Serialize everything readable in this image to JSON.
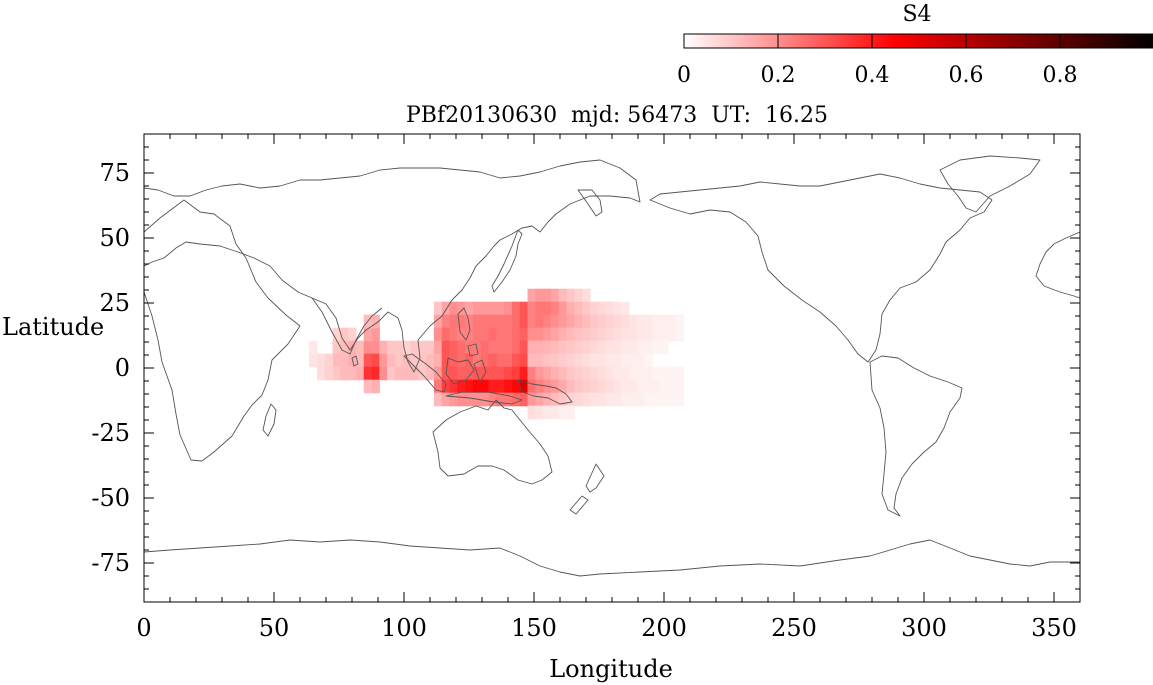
{
  "chart_data": {
    "type": "heatmap",
    "title": "PBf20130630  mjd: 56473  UT:  16.25",
    "xlabel": "Longitude",
    "ylabel": "Latitude",
    "xlim": [
      0,
      360
    ],
    "ylim": [
      -90,
      90
    ],
    "xticks": [
      0,
      50,
      100,
      150,
      200,
      250,
      300,
      350
    ],
    "yticks": [
      75,
      50,
      25,
      0,
      -25,
      -50,
      -75
    ],
    "grid": false,
    "colorbar": {
      "label": "S4",
      "range": [
        0,
        1
      ],
      "ticks": [
        0,
        0.2,
        0.4,
        0.6,
        0.8
      ],
      "tick_labels": [
        "0",
        "0.2",
        "0.4",
        "0.6",
        "0.8"
      ],
      "colormap": [
        "#ffffff",
        "#ff0000",
        "#000000"
      ],
      "position": "top-right"
    },
    "cell_size_deg": [
      3,
      5
    ],
    "cells": [
      [
        74,
        13,
        0.08
      ],
      [
        77,
        13,
        0.1
      ],
      [
        80,
        13,
        0.08
      ],
      [
        74,
        8,
        0.1
      ],
      [
        77,
        8,
        0.12
      ],
      [
        80,
        8,
        0.14
      ],
      [
        83,
        8,
        0.12
      ],
      [
        86,
        8,
        0.2
      ],
      [
        89,
        8,
        0.2
      ],
      [
        92,
        8,
        0.14
      ],
      [
        74,
        3,
        0.12
      ],
      [
        77,
        3,
        0.12
      ],
      [
        80,
        3,
        0.14
      ],
      [
        83,
        3,
        0.12
      ],
      [
        86,
        3,
        0.3
      ],
      [
        89,
        3,
        0.32
      ],
      [
        92,
        3,
        0.18
      ],
      [
        74,
        -2,
        0.1
      ],
      [
        77,
        -2,
        0.12
      ],
      [
        80,
        -2,
        0.12
      ],
      [
        83,
        -2,
        0.14
      ],
      [
        86,
        -2,
        0.36
      ],
      [
        89,
        -2,
        0.38
      ],
      [
        92,
        -2,
        0.2
      ],
      [
        86,
        13,
        0.16
      ],
      [
        89,
        13,
        0.18
      ],
      [
        86,
        18,
        0.12
      ],
      [
        89,
        18,
        0.14
      ],
      [
        86,
        -7,
        0.12
      ],
      [
        89,
        -7,
        0.14
      ],
      [
        65,
        8,
        0.04
      ],
      [
        65,
        3,
        0.05
      ],
      [
        68,
        3,
        0.06
      ],
      [
        71,
        3,
        0.08
      ],
      [
        68,
        -2,
        0.06
      ],
      [
        71,
        -2,
        0.08
      ],
      [
        95,
        3,
        0.12
      ],
      [
        98,
        3,
        0.1
      ],
      [
        101,
        3,
        0.12
      ],
      [
        104,
        3,
        0.1
      ],
      [
        107,
        3,
        0.1
      ],
      [
        110,
        3,
        0.12
      ],
      [
        95,
        8,
        0.1
      ],
      [
        98,
        8,
        0.1
      ],
      [
        101,
        8,
        0.08
      ],
      [
        104,
        8,
        0.1
      ],
      [
        107,
        8,
        0.1
      ],
      [
        110,
        8,
        0.1
      ],
      [
        95,
        -2,
        0.1
      ],
      [
        98,
        -2,
        0.12
      ],
      [
        101,
        -2,
        0.12
      ],
      [
        104,
        -2,
        0.12
      ],
      [
        107,
        -2,
        0.1
      ],
      [
        110,
        -2,
        0.12
      ],
      [
        113,
        23,
        0.1
      ],
      [
        116,
        23,
        0.16
      ],
      [
        119,
        23,
        0.2
      ],
      [
        122,
        23,
        0.18
      ],
      [
        125,
        23,
        0.16
      ],
      [
        128,
        23,
        0.18
      ],
      [
        131,
        23,
        0.18
      ],
      [
        134,
        23,
        0.18
      ],
      [
        137,
        23,
        0.18
      ],
      [
        140,
        23,
        0.2
      ],
      [
        143,
        23,
        0.26
      ],
      [
        146,
        23,
        0.3
      ],
      [
        113,
        18,
        0.16
      ],
      [
        116,
        18,
        0.22
      ],
      [
        119,
        18,
        0.24
      ],
      [
        122,
        18,
        0.24
      ],
      [
        125,
        18,
        0.22
      ],
      [
        128,
        18,
        0.24
      ],
      [
        131,
        18,
        0.24
      ],
      [
        134,
        18,
        0.24
      ],
      [
        137,
        18,
        0.24
      ],
      [
        140,
        18,
        0.24
      ],
      [
        143,
        18,
        0.26
      ],
      [
        146,
        18,
        0.3
      ],
      [
        113,
        13,
        0.2
      ],
      [
        116,
        13,
        0.26
      ],
      [
        119,
        13,
        0.24
      ],
      [
        122,
        13,
        0.22
      ],
      [
        125,
        13,
        0.22
      ],
      [
        128,
        13,
        0.24
      ],
      [
        131,
        13,
        0.24
      ],
      [
        134,
        13,
        0.26
      ],
      [
        137,
        13,
        0.24
      ],
      [
        140,
        13,
        0.24
      ],
      [
        143,
        13,
        0.26
      ],
      [
        146,
        13,
        0.28
      ],
      [
        113,
        8,
        0.16
      ],
      [
        116,
        8,
        0.3
      ],
      [
        119,
        8,
        0.28
      ],
      [
        122,
        8,
        0.26
      ],
      [
        125,
        8,
        0.24
      ],
      [
        128,
        8,
        0.24
      ],
      [
        131,
        8,
        0.26
      ],
      [
        134,
        8,
        0.24
      ],
      [
        137,
        8,
        0.24
      ],
      [
        140,
        8,
        0.24
      ],
      [
        143,
        8,
        0.26
      ],
      [
        146,
        8,
        0.3
      ],
      [
        113,
        3,
        0.14
      ],
      [
        116,
        3,
        0.3
      ],
      [
        119,
        3,
        0.28
      ],
      [
        122,
        3,
        0.26
      ],
      [
        125,
        3,
        0.28
      ],
      [
        128,
        3,
        0.24
      ],
      [
        131,
        3,
        0.26
      ],
      [
        134,
        3,
        0.28
      ],
      [
        137,
        3,
        0.26
      ],
      [
        140,
        3,
        0.26
      ],
      [
        143,
        3,
        0.3
      ],
      [
        146,
        3,
        0.32
      ],
      [
        113,
        -2,
        0.18
      ],
      [
        116,
        -2,
        0.3
      ],
      [
        119,
        -2,
        0.3
      ],
      [
        122,
        -2,
        0.28
      ],
      [
        125,
        -2,
        0.28
      ],
      [
        128,
        -2,
        0.3
      ],
      [
        131,
        -2,
        0.3
      ],
      [
        134,
        -2,
        0.3
      ],
      [
        137,
        -2,
        0.3
      ],
      [
        140,
        -2,
        0.32
      ],
      [
        143,
        -2,
        0.34
      ],
      [
        146,
        -2,
        0.4
      ],
      [
        113,
        -7,
        0.24
      ],
      [
        116,
        -7,
        0.34
      ],
      [
        119,
        -7,
        0.36
      ],
      [
        122,
        -7,
        0.4
      ],
      [
        125,
        -7,
        0.42
      ],
      [
        128,
        -7,
        0.44
      ],
      [
        131,
        -7,
        0.44
      ],
      [
        134,
        -7,
        0.4
      ],
      [
        137,
        -7,
        0.4
      ],
      [
        140,
        -7,
        0.42
      ],
      [
        143,
        -7,
        0.44
      ],
      [
        146,
        -7,
        0.52
      ],
      [
        113,
        -12,
        0.12
      ],
      [
        116,
        -12,
        0.16
      ],
      [
        119,
        -12,
        0.18
      ],
      [
        122,
        -12,
        0.2
      ],
      [
        125,
        -12,
        0.2
      ],
      [
        128,
        -12,
        0.2
      ],
      [
        131,
        -12,
        0.2
      ],
      [
        134,
        -12,
        0.22
      ],
      [
        137,
        -12,
        0.24
      ],
      [
        140,
        -12,
        0.24
      ],
      [
        143,
        -12,
        0.26
      ],
      [
        146,
        -12,
        0.28
      ],
      [
        149,
        28,
        0.16
      ],
      [
        152,
        28,
        0.18
      ],
      [
        155,
        28,
        0.18
      ],
      [
        158,
        28,
        0.16
      ],
      [
        161,
        28,
        0.12
      ],
      [
        164,
        28,
        0.1
      ],
      [
        167,
        28,
        0.08
      ],
      [
        170,
        28,
        0.06
      ],
      [
        149,
        23,
        0.22
      ],
      [
        152,
        23,
        0.24
      ],
      [
        155,
        23,
        0.24
      ],
      [
        158,
        23,
        0.22
      ],
      [
        161,
        23,
        0.18
      ],
      [
        164,
        23,
        0.14
      ],
      [
        167,
        23,
        0.12
      ],
      [
        170,
        23,
        0.1
      ],
      [
        173,
        23,
        0.08
      ],
      [
        176,
        23,
        0.07
      ],
      [
        179,
        23,
        0.06
      ],
      [
        182,
        23,
        0.05
      ],
      [
        185,
        23,
        0.04
      ],
      [
        149,
        18,
        0.22
      ],
      [
        152,
        18,
        0.24
      ],
      [
        155,
        18,
        0.22
      ],
      [
        158,
        18,
        0.2
      ],
      [
        161,
        18,
        0.18
      ],
      [
        164,
        18,
        0.16
      ],
      [
        167,
        18,
        0.14
      ],
      [
        170,
        18,
        0.12
      ],
      [
        173,
        18,
        0.1
      ],
      [
        176,
        18,
        0.09
      ],
      [
        179,
        18,
        0.08
      ],
      [
        182,
        18,
        0.07
      ],
      [
        185,
        18,
        0.06
      ],
      [
        188,
        18,
        0.05
      ],
      [
        191,
        18,
        0.04
      ],
      [
        194,
        18,
        0.04
      ],
      [
        197,
        18,
        0.03
      ],
      [
        200,
        18,
        0.03
      ],
      [
        203,
        18,
        0.03
      ],
      [
        206,
        18,
        0.02
      ],
      [
        149,
        13,
        0.2
      ],
      [
        152,
        13,
        0.2
      ],
      [
        155,
        13,
        0.18
      ],
      [
        158,
        13,
        0.16
      ],
      [
        161,
        13,
        0.14
      ],
      [
        164,
        13,
        0.12
      ],
      [
        167,
        13,
        0.11
      ],
      [
        170,
        13,
        0.1
      ],
      [
        173,
        13,
        0.09
      ],
      [
        176,
        13,
        0.08
      ],
      [
        179,
        13,
        0.07
      ],
      [
        182,
        13,
        0.06
      ],
      [
        185,
        13,
        0.05
      ],
      [
        188,
        13,
        0.05
      ],
      [
        191,
        13,
        0.04
      ],
      [
        194,
        13,
        0.04
      ],
      [
        197,
        13,
        0.03
      ],
      [
        200,
        13,
        0.03
      ],
      [
        203,
        13,
        0.03
      ],
      [
        206,
        13,
        0.02
      ],
      [
        149,
        8,
        0.14
      ],
      [
        152,
        8,
        0.14
      ],
      [
        155,
        8,
        0.13
      ],
      [
        158,
        8,
        0.12
      ],
      [
        161,
        8,
        0.11
      ],
      [
        164,
        8,
        0.1
      ],
      [
        167,
        8,
        0.09
      ],
      [
        170,
        8,
        0.08
      ],
      [
        173,
        8,
        0.07
      ],
      [
        176,
        8,
        0.06
      ],
      [
        179,
        8,
        0.05
      ],
      [
        182,
        8,
        0.05
      ],
      [
        185,
        8,
        0.04
      ],
      [
        188,
        8,
        0.04
      ],
      [
        191,
        8,
        0.03
      ],
      [
        194,
        8,
        0.03
      ],
      [
        197,
        8,
        0.02
      ],
      [
        200,
        8,
        0.02
      ],
      [
        149,
        3,
        0.12
      ],
      [
        152,
        3,
        0.12
      ],
      [
        155,
        3,
        0.11
      ],
      [
        158,
        3,
        0.1
      ],
      [
        161,
        3,
        0.09
      ],
      [
        164,
        3,
        0.08
      ],
      [
        167,
        3,
        0.07
      ],
      [
        170,
        3,
        0.06
      ],
      [
        173,
        3,
        0.05
      ],
      [
        176,
        3,
        0.05
      ],
      [
        179,
        3,
        0.04
      ],
      [
        182,
        3,
        0.04
      ],
      [
        185,
        3,
        0.03
      ],
      [
        188,
        3,
        0.03
      ],
      [
        191,
        3,
        0.03
      ],
      [
        194,
        3,
        0.02
      ],
      [
        149,
        -2,
        0.22
      ],
      [
        152,
        -2,
        0.18
      ],
      [
        155,
        -2,
        0.16
      ],
      [
        158,
        -2,
        0.14
      ],
      [
        161,
        -2,
        0.12
      ],
      [
        164,
        -2,
        0.1
      ],
      [
        167,
        -2,
        0.09
      ],
      [
        170,
        -2,
        0.08
      ],
      [
        173,
        -2,
        0.07
      ],
      [
        176,
        -2,
        0.06
      ],
      [
        179,
        -2,
        0.05
      ],
      [
        182,
        -2,
        0.04
      ],
      [
        185,
        -2,
        0.04
      ],
      [
        188,
        -2,
        0.03
      ],
      [
        191,
        -2,
        0.03
      ],
      [
        194,
        -2,
        0.03
      ],
      [
        197,
        -2,
        0.02
      ],
      [
        200,
        -2,
        0.02
      ],
      [
        203,
        -2,
        0.02
      ],
      [
        206,
        -2,
        0.02
      ],
      [
        149,
        -7,
        0.26
      ],
      [
        152,
        -7,
        0.22
      ],
      [
        155,
        -7,
        0.2
      ],
      [
        158,
        -7,
        0.18
      ],
      [
        161,
        -7,
        0.15
      ],
      [
        164,
        -7,
        0.12
      ],
      [
        167,
        -7,
        0.1
      ],
      [
        170,
        -7,
        0.09
      ],
      [
        173,
        -7,
        0.08
      ],
      [
        176,
        -7,
        0.07
      ],
      [
        179,
        -7,
        0.06
      ],
      [
        182,
        -7,
        0.05
      ],
      [
        185,
        -7,
        0.04
      ],
      [
        188,
        -7,
        0.04
      ],
      [
        191,
        -7,
        0.03
      ],
      [
        194,
        -7,
        0.03
      ],
      [
        197,
        -7,
        0.03
      ],
      [
        200,
        -7,
        0.02
      ],
      [
        203,
        -7,
        0.02
      ],
      [
        206,
        -7,
        0.02
      ],
      [
        149,
        -12,
        0.18
      ],
      [
        152,
        -12,
        0.16
      ],
      [
        155,
        -12,
        0.14
      ],
      [
        158,
        -12,
        0.12
      ],
      [
        161,
        -12,
        0.1
      ],
      [
        164,
        -12,
        0.08
      ],
      [
        167,
        -12,
        0.07
      ],
      [
        170,
        -12,
        0.06
      ],
      [
        173,
        -12,
        0.05
      ],
      [
        176,
        -12,
        0.05
      ],
      [
        179,
        -12,
        0.04
      ],
      [
        182,
        -12,
        0.04
      ],
      [
        185,
        -12,
        0.03
      ],
      [
        188,
        -12,
        0.03
      ],
      [
        191,
        -12,
        0.03
      ],
      [
        194,
        -12,
        0.02
      ],
      [
        197,
        -12,
        0.02
      ],
      [
        200,
        -12,
        0.02
      ],
      [
        203,
        -12,
        0.02
      ],
      [
        206,
        -12,
        0.02
      ],
      [
        149,
        -17,
        0.06
      ],
      [
        152,
        -17,
        0.05
      ],
      [
        155,
        -17,
        0.04
      ],
      [
        158,
        -17,
        0.04
      ],
      [
        161,
        -17,
        0.03
      ],
      [
        164,
        -17,
        0.03
      ]
    ]
  }
}
